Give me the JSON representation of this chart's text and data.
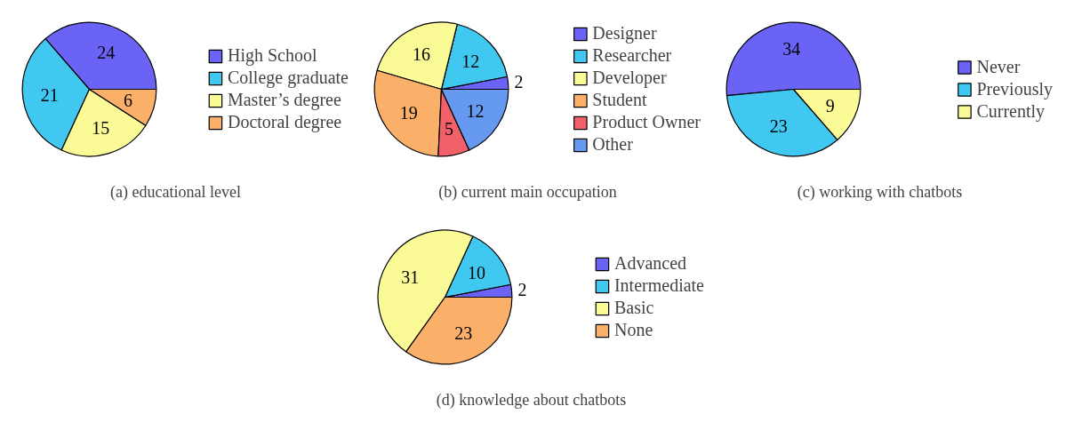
{
  "chart_data": [
    {
      "type": "pie",
      "title": "(a) educational level",
      "categories": [
        "High School",
        "College graduate",
        "Master’s degree",
        "Doctoral degree"
      ],
      "values": [
        24,
        21,
        15,
        6
      ],
      "colors": [
        "#6b63f6",
        "#40c8f0",
        "#fafa96",
        "#fbb06a"
      ],
      "data_labels": true,
      "legend": "right"
    },
    {
      "type": "pie",
      "title": "(b) current main occupation",
      "categories": [
        "Designer",
        "Researcher",
        "Developer",
        "Student",
        "Product Owner",
        "Other"
      ],
      "values": [
        2,
        12,
        16,
        19,
        5,
        12
      ],
      "colors": [
        "#6b63f6",
        "#40c8f0",
        "#fafa96",
        "#fbb06a",
        "#f2606a",
        "#6699f0"
      ],
      "data_labels": true,
      "legend": "right"
    },
    {
      "type": "pie",
      "title": "(c) working with chatbots",
      "categories": [
        "Never",
        "Previously",
        "Currently"
      ],
      "values": [
        34,
        23,
        9
      ],
      "colors": [
        "#6b63f6",
        "#40c8f0",
        "#fafa96"
      ],
      "data_labels": true,
      "legend": "right"
    },
    {
      "type": "pie",
      "title": "(d) knowledge about chatbots",
      "categories": [
        "Advanced",
        "Intermediate",
        "Basic",
        "None"
      ],
      "values": [
        2,
        10,
        31,
        23
      ],
      "colors": [
        "#6b63f6",
        "#40c8f0",
        "#fafa96",
        "#fbb06a"
      ],
      "data_labels": true,
      "legend": "right"
    }
  ]
}
